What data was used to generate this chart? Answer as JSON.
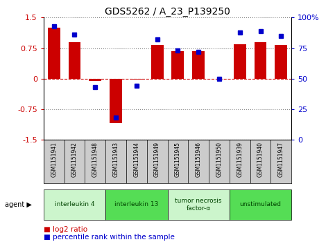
{
  "title": "GDS5262 / A_23_P139250",
  "samples": [
    "GSM1151941",
    "GSM1151942",
    "GSM1151948",
    "GSM1151943",
    "GSM1151944",
    "GSM1151949",
    "GSM1151945",
    "GSM1151946",
    "GSM1151950",
    "GSM1151939",
    "GSM1151940",
    "GSM1151947"
  ],
  "log2_ratio": [
    1.25,
    0.9,
    -0.05,
    -1.1,
    -0.03,
    0.83,
    0.68,
    0.68,
    0.0,
    0.85,
    0.9,
    0.82
  ],
  "percentile": [
    93,
    86,
    43,
    18,
    44,
    82,
    73,
    72,
    50,
    88,
    89,
    85
  ],
  "agents": [
    {
      "label": "interleukin 4",
      "start": 0,
      "end": 3,
      "color": "#ccf5cc"
    },
    {
      "label": "interleukin 13",
      "start": 3,
      "end": 6,
      "color": "#55dd55"
    },
    {
      "label": "tumor necrosis\nfactor-α",
      "start": 6,
      "end": 9,
      "color": "#ccf5cc"
    },
    {
      "label": "unstimulated",
      "start": 9,
      "end": 12,
      "color": "#55dd55"
    }
  ],
  "ylim": [
    -1.5,
    1.5
  ],
  "yticks_left": [
    -1.5,
    -0.75,
    0.0,
    0.75,
    1.5
  ],
  "yticks_right": [
    0,
    25,
    50,
    75,
    100
  ],
  "bar_color": "#cc0000",
  "dot_color": "#0000cc",
  "bg_color": "#ffffff",
  "plot_bg": "#ffffff",
  "legend_items": [
    {
      "color": "#cc0000",
      "label": "log2 ratio"
    },
    {
      "color": "#0000cc",
      "label": "percentile rank within the sample"
    }
  ]
}
